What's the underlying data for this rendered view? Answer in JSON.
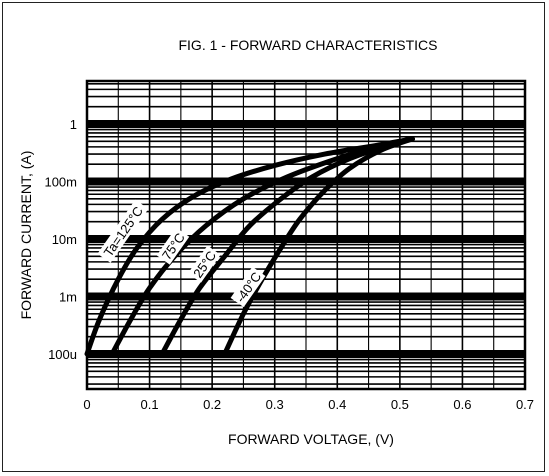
{
  "chart_data": {
    "type": "line",
    "title": "FIG. 1 - FORWARD CHARACTERISTICS",
    "xlabel": "FORWARD  VOLTAGE, (V)",
    "ylabel": "FORWARD  CURRENT, (A)",
    "y_scale": "log",
    "xlim": [
      0,
      0.7
    ],
    "ylim": [
      2e-05,
      5
    ],
    "grid": true,
    "x_ticks": [
      "0",
      "0.1",
      "0.2",
      "0.3",
      "0.4",
      "0.5",
      "0.6",
      "0.7"
    ],
    "x_tick_values": [
      0,
      0.1,
      0.2,
      0.3,
      0.4,
      0.5,
      0.6,
      0.7
    ],
    "y_ticks": [
      "100u",
      "1m",
      "10m",
      "100m",
      "1"
    ],
    "y_tick_values": [
      0.0001,
      0.001,
      0.01,
      0.1,
      1
    ],
    "series": [
      {
        "name": "Ta=125°C",
        "x": [
          0.0,
          0.02,
          0.05,
          0.08,
          0.12,
          0.17,
          0.23,
          0.3,
          0.38,
          0.46,
          0.52
        ],
        "y": [
          0.0001,
          0.0004,
          0.002,
          0.007,
          0.022,
          0.055,
          0.11,
          0.19,
          0.3,
          0.42,
          0.55
        ]
      },
      {
        "name": "75°C",
        "x": [
          0.04,
          0.07,
          0.1,
          0.14,
          0.19,
          0.25,
          0.32,
          0.4,
          0.47,
          0.52
        ],
        "y": [
          0.0001,
          0.0004,
          0.0014,
          0.005,
          0.017,
          0.05,
          0.12,
          0.25,
          0.42,
          0.55
        ]
      },
      {
        "name": "25°C",
        "x": [
          0.12,
          0.15,
          0.18,
          0.22,
          0.26,
          0.31,
          0.36,
          0.42,
          0.48,
          0.52
        ],
        "y": [
          0.0001,
          0.0004,
          0.0014,
          0.005,
          0.017,
          0.05,
          0.12,
          0.25,
          0.42,
          0.55
        ]
      },
      {
        "name": "-40°C",
        "x": [
          0.22,
          0.25,
          0.28,
          0.31,
          0.34,
          0.38,
          0.42,
          0.47,
          0.52
        ],
        "y": [
          0.0001,
          0.0005,
          0.002,
          0.007,
          0.022,
          0.07,
          0.17,
          0.35,
          0.55
        ]
      }
    ]
  }
}
